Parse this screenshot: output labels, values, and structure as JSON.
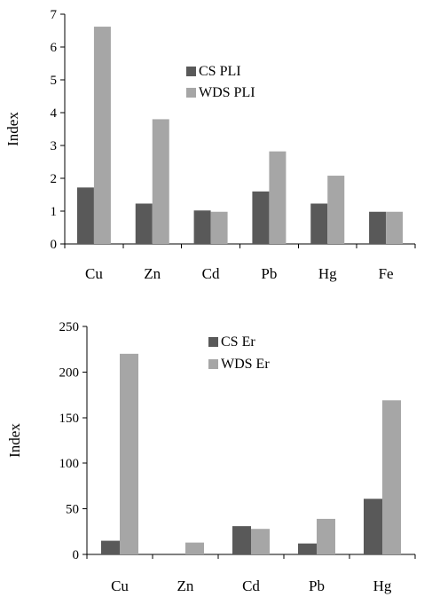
{
  "chart_data": [
    {
      "type": "bar",
      "ylabel": "Index",
      "xlabel": "",
      "ylim": [
        0,
        7
      ],
      "yticks": [
        0,
        1,
        2,
        3,
        4,
        5,
        6,
        7
      ],
      "categories": [
        "Cu",
        "Zn",
        "Cd",
        "Pb",
        "Hg",
        "Fe"
      ],
      "series": [
        {
          "name": "CS PLI",
          "color": "#595959",
          "values": [
            1.72,
            1.23,
            1.02,
            1.6,
            1.23,
            0.98
          ]
        },
        {
          "name": "WDS PLI",
          "color": "#a6a6a6",
          "values": [
            6.62,
            3.8,
            0.98,
            2.82,
            2.08,
            0.98
          ]
        }
      ],
      "legend": "top-center",
      "grid": false
    },
    {
      "type": "bar",
      "ylabel": "Index",
      "xlabel": "",
      "ylim": [
        0,
        250
      ],
      "yticks": [
        0,
        50,
        100,
        150,
        200,
        250
      ],
      "categories": [
        "Cu",
        "Zn",
        "Cd",
        "Pb",
        "Hg"
      ],
      "series": [
        {
          "name": "CS Er",
          "color": "#595959",
          "values": [
            15,
            0,
            31,
            12,
            61
          ]
        },
        {
          "name": "WDS Er",
          "color": "#a6a6a6",
          "values": [
            220,
            13,
            28,
            39,
            169
          ]
        }
      ],
      "legend": "top-center",
      "grid": false
    }
  ]
}
